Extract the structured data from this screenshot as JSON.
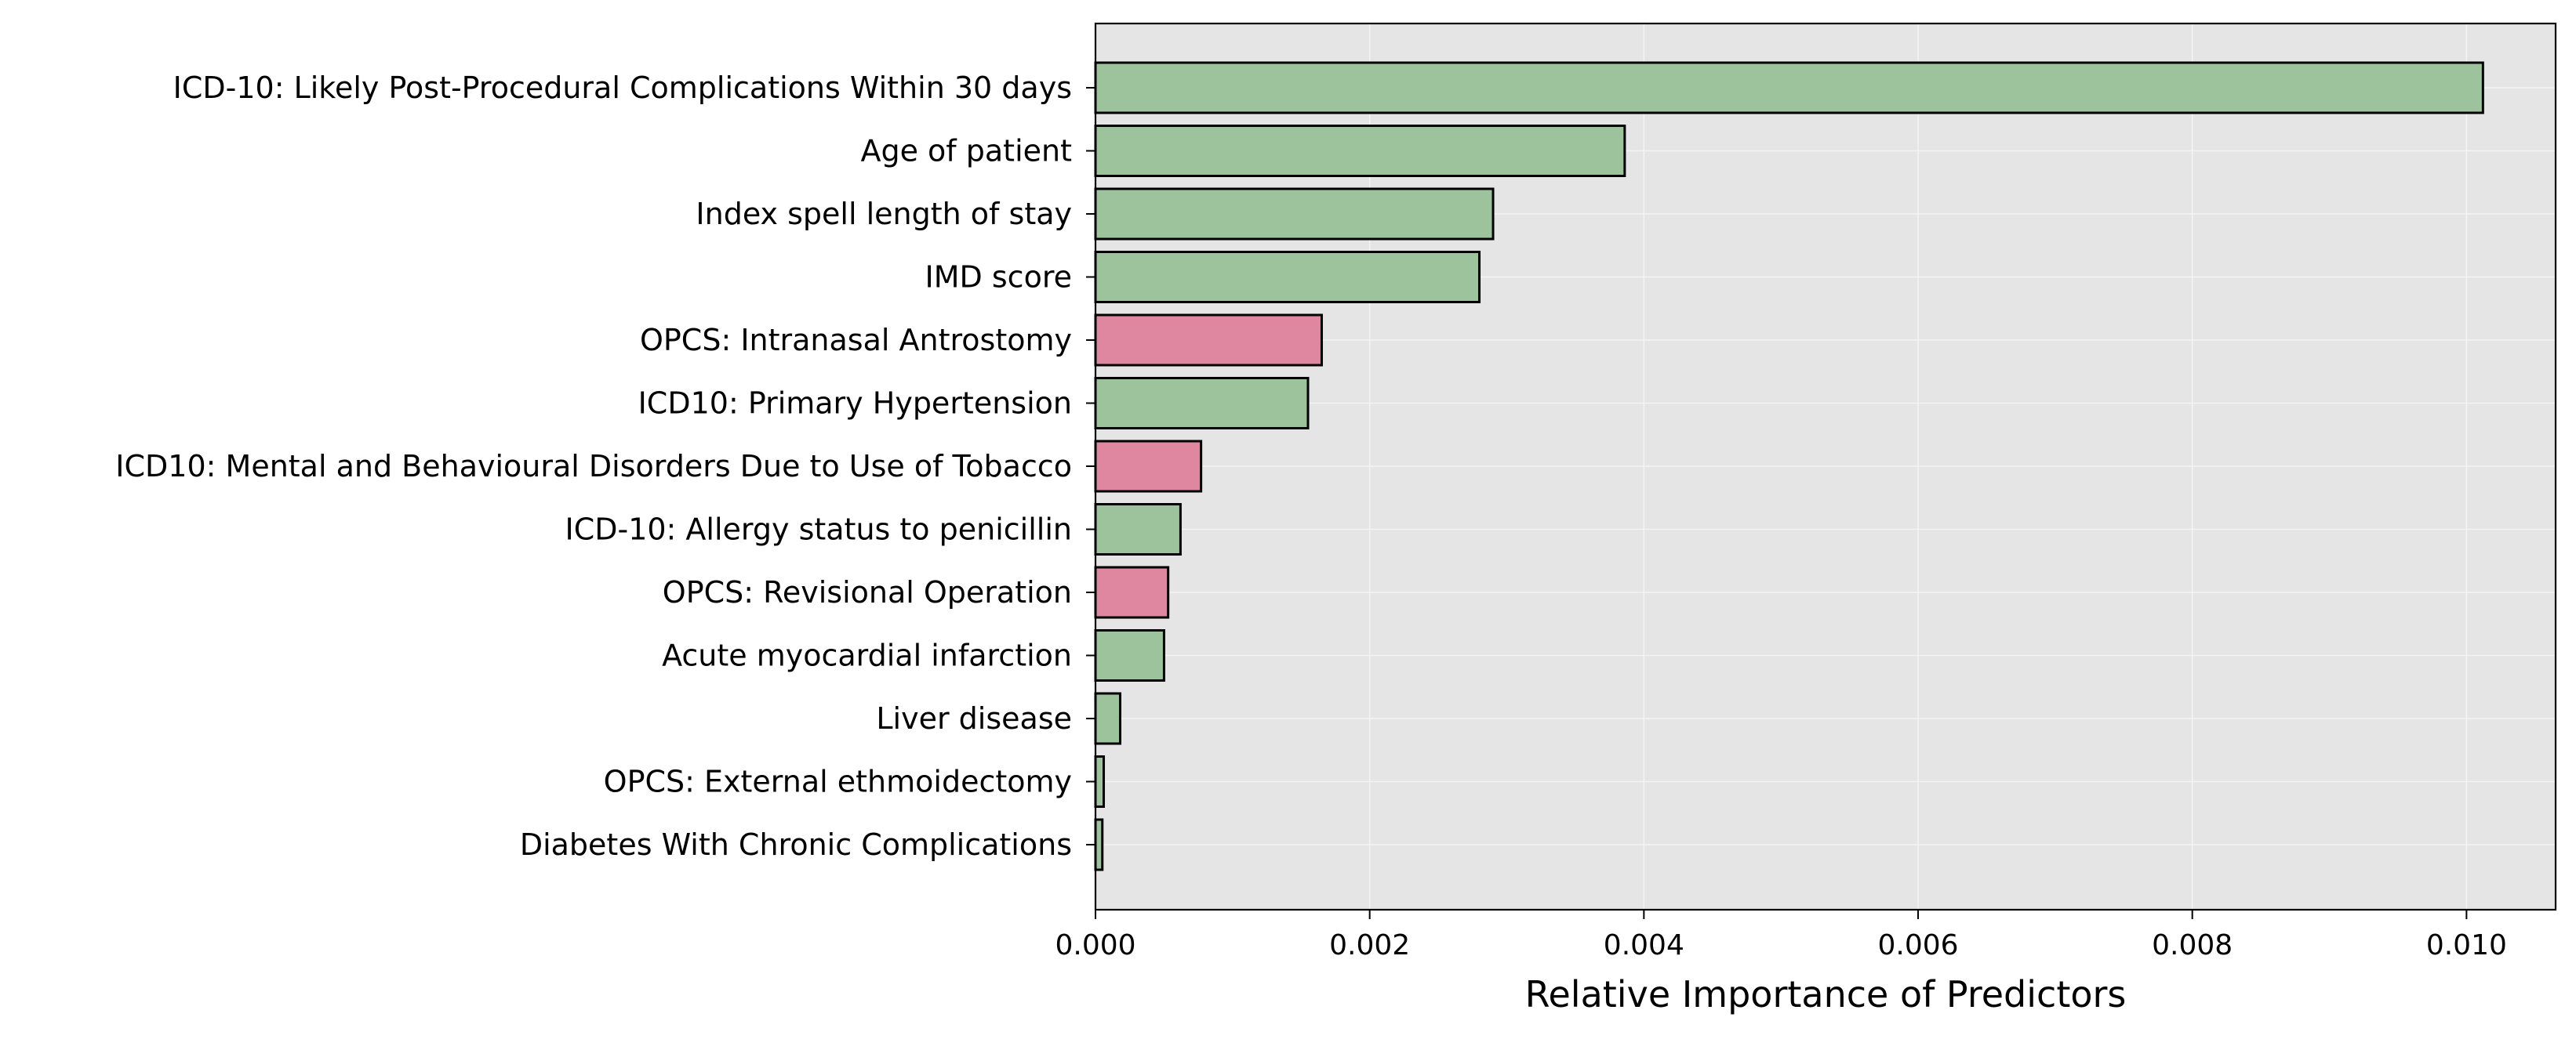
{
  "chart_data": {
    "type": "bar",
    "orientation": "horizontal",
    "categories": [
      "ICD-10: Likely Post-Procedural Complications Within 30 days",
      "Age of patient",
      "Index spell length of stay",
      "IMD score",
      "OPCS: Intranasal Antrostomy",
      "ICD10: Primary Hypertension",
      "ICD10: Mental and Behavioural Disorders Due to Use of Tobacco",
      "ICD-10: Allergy status to penicillin",
      "OPCS: Revisional Operation",
      "Acute myocardial infarction",
      "Liver disease",
      "OPCS: External ethmoidectomy",
      "Diabetes With Chronic Complications"
    ],
    "values": [
      0.01012,
      0.00386,
      0.0029,
      0.0028,
      0.00165,
      0.00155,
      0.00077,
      0.00062,
      0.00053,
      0.0005,
      0.00018,
      6e-05,
      5e-05
    ],
    "bar_colors": [
      "#9dc39c",
      "#9dc39c",
      "#9dc39c",
      "#9dc39c",
      "#df86a1",
      "#9dc39c",
      "#df86a1",
      "#9dc39c",
      "#df86a1",
      "#9dc39c",
      "#9dc39c",
      "#9dc39c",
      "#9dc39c"
    ],
    "xlabel": "Relative Importance of Predictors",
    "ylabel": "",
    "title": "",
    "xlim": [
      0,
      0.01065
    ],
    "xticks": [
      0,
      0.002,
      0.004,
      0.006,
      0.008,
      0.01
    ],
    "xtick_labels": [
      "0.000",
      "0.002",
      "0.004",
      "0.006",
      "0.008",
      "0.010"
    ],
    "grid": true,
    "background_color": "#e5e5e5",
    "grid_color": "#f4f4f4",
    "edge_color": "#000000"
  }
}
